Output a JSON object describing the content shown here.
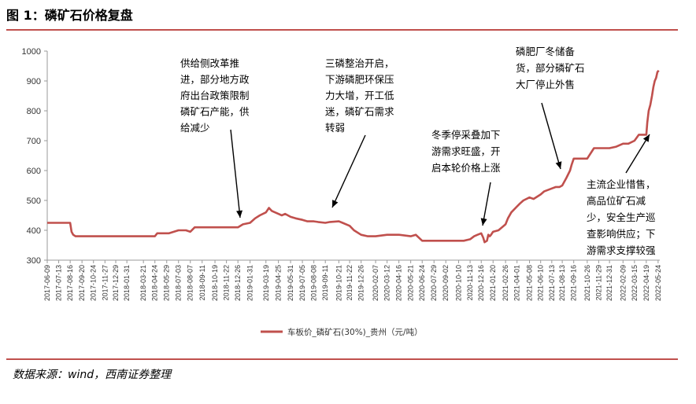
{
  "header": {
    "title": "图 1：磷矿石价格复盘"
  },
  "footer": {
    "source": "数据来源：wind，西南证券整理"
  },
  "chart_data": {
    "type": "line",
    "title": "",
    "xlabel": "",
    "ylabel": "",
    "ylim": [
      300,
      1000
    ],
    "yticks": [
      300,
      400,
      500,
      600,
      700,
      800,
      900,
      1000
    ],
    "grid": false,
    "legend_position": "bottom-center",
    "line_color": "#C0504D",
    "x_tick_labels": [
      "2017-06-09",
      "2017-07-13",
      "2017-08-16",
      "2017-09-20",
      "2017-10-24",
      "2017-11-27",
      "2017-12-29",
      "2018-01-31",
      "2018-03-21",
      "2018-04-24",
      "2018-05-29",
      "2018-07-03",
      "2018-08-07",
      "2018-09-11",
      "2018-10-19",
      "2018-11-22",
      "2018-12-26",
      "2019-01-31",
      "2019-03-19",
      "2019-04-25",
      "2019-05-31",
      "2019-07-05",
      "2019-08-08",
      "2019-09-11",
      "2019-10-21",
      "2019-11-22",
      "2019-12-26",
      "2020-02-07",
      "2020-03-12",
      "2020-04-16",
      "2020-05-21",
      "2020-06-24",
      "2020-07-29",
      "2020-09-02",
      "2020-10-10",
      "2020-11-13",
      "2020-12-16",
      "2021-01-20",
      "2021-02-26",
      "2021-04-01",
      "2021-05-08",
      "2021-06-10",
      "2021-07-13",
      "2021-08-13",
      "2021-09-16",
      "2021-10-26",
      "2021-11-29",
      "2021-12-31",
      "2022-02-09",
      "2022-03-15",
      "2022-04-19",
      "2022-05-24"
    ],
    "series": [
      {
        "name": "车板价_磷矿石(30%)_贵州（元/吨）",
        "x": [
          "2017-06-09",
          "2017-08-16",
          "2017-08-20",
          "2017-08-25",
          "2017-09-01",
          "2018-04-24",
          "2018-05-01",
          "2018-05-29",
          "2018-06-05",
          "2018-07-03",
          "2018-07-25",
          "2018-08-07",
          "2018-08-20",
          "2018-09-11",
          "2018-10-19",
          "2018-11-22",
          "2018-12-26",
          "2019-01-10",
          "2019-01-31",
          "2019-02-15",
          "2019-03-01",
          "2019-03-19",
          "2019-03-28",
          "2019-04-05",
          "2019-04-15",
          "2019-04-25",
          "2019-05-05",
          "2019-05-15",
          "2019-05-31",
          "2019-06-15",
          "2019-07-05",
          "2019-07-20",
          "2019-08-08",
          "2019-08-20",
          "2019-09-11",
          "2019-09-25",
          "2019-10-21",
          "2019-11-01",
          "2019-11-22",
          "2019-12-05",
          "2019-12-26",
          "2020-01-15",
          "2020-02-07",
          "2020-03-12",
          "2020-04-16",
          "2020-05-21",
          "2020-06-05",
          "2020-06-24",
          "2020-07-29",
          "2020-09-02",
          "2020-10-10",
          "2020-10-25",
          "2020-11-13",
          "2020-11-25",
          "2020-12-05",
          "2020-12-16",
          "2020-12-22",
          "2020-12-26",
          "2021-01-02",
          "2021-01-06",
          "2021-01-10",
          "2021-01-14",
          "2021-01-20",
          "2021-02-05",
          "2021-02-26",
          "2021-03-05",
          "2021-03-15",
          "2021-04-01",
          "2021-04-10",
          "2021-04-20",
          "2021-05-08",
          "2021-05-20",
          "2021-06-10",
          "2021-06-20",
          "2021-07-13",
          "2021-07-25",
          "2021-08-05",
          "2021-08-13",
          "2021-08-25",
          "2021-09-05",
          "2021-09-10",
          "2021-09-16",
          "2021-09-25",
          "2021-10-26",
          "2021-11-15",
          "2021-11-29",
          "2021-12-31",
          "2022-01-20",
          "2022-02-09",
          "2022-02-25",
          "2022-03-15",
          "2022-03-28",
          "2022-04-19",
          "2022-04-22",
          "2022-04-26",
          "2022-05-01",
          "2022-05-06",
          "2022-05-10",
          "2022-05-14",
          "2022-05-18",
          "2022-05-22",
          "2022-05-26"
        ],
        "values": [
          425,
          425,
          395,
          385,
          380,
          380,
          390,
          390,
          390,
          400,
          400,
          395,
          410,
          410,
          410,
          410,
          410,
          420,
          425,
          440,
          450,
          460,
          475,
          465,
          460,
          455,
          450,
          455,
          445,
          440,
          435,
          430,
          430,
          428,
          425,
          428,
          430,
          425,
          415,
          400,
          385,
          380,
          380,
          385,
          385,
          380,
          385,
          365,
          365,
          365,
          365,
          365,
          370,
          380,
          385,
          390,
          375,
          360,
          365,
          385,
          380,
          385,
          395,
          400,
          420,
          440,
          460,
          480,
          490,
          500,
          510,
          505,
          520,
          530,
          540,
          545,
          545,
          550,
          575,
          600,
          620,
          640,
          640,
          640,
          675,
          675,
          675,
          680,
          690,
          690,
          700,
          720,
          720,
          760,
          800,
          820,
          850,
          880,
          900,
          910,
          930,
          935
        ]
      }
    ]
  },
  "annotations": [
    {
      "lines": [
        "供给侧改革推",
        "进，部分地方政",
        "府出台政策限制",
        "磷矿石产能，供",
        "给减少"
      ]
    },
    {
      "lines": [
        "三磷整治开启，",
        "下游磷肥环保压",
        "力大增，开工低",
        "迷，磷矿石需求",
        "转弱"
      ]
    },
    {
      "lines": [
        "冬季停采叠加下",
        "游需求旺盛，开",
        "启本轮价格上涨"
      ]
    },
    {
      "lines": [
        "磷肥厂冬储备",
        "货，部分磷矿石",
        "大厂停止外售"
      ]
    },
    {
      "lines": [
        "主流企业惜售，",
        "高品位矿石减",
        "少，安全生产巡",
        "查影响供应；下",
        "游需求支撑较强"
      ]
    }
  ]
}
